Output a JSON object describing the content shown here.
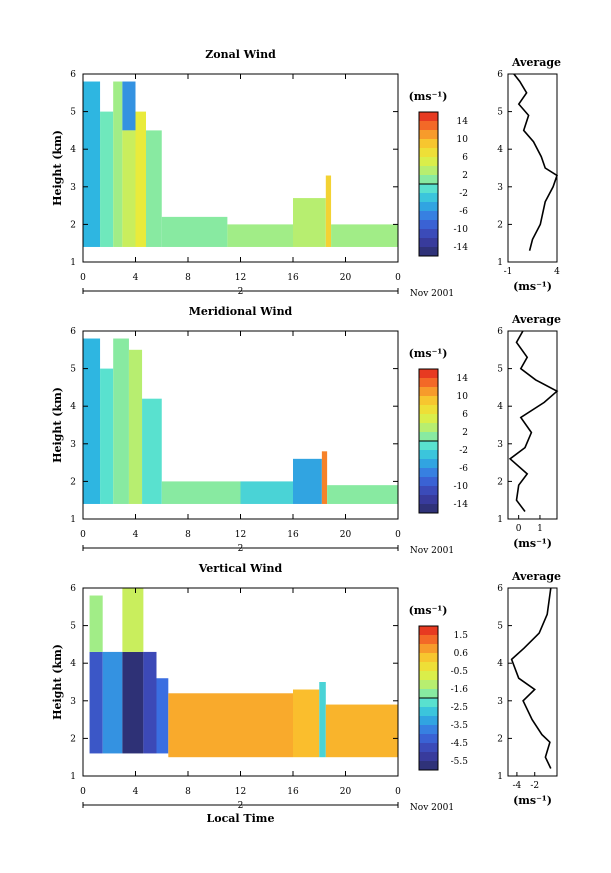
{
  "figure": {
    "xlabel": "Local Time",
    "date_label": "Nov 2001",
    "day_label": "2"
  },
  "chart_data": [
    {
      "type": "heatmap",
      "title": "Zonal Wind",
      "xlabel": "Local Time",
      "ylabel": "Height (km)",
      "x_ticks": [
        "0",
        "4",
        "8",
        "12",
        "16",
        "20",
        "0"
      ],
      "x_range_hours": [
        0,
        24
      ],
      "y_ticks": [
        "1",
        "2",
        "3",
        "4",
        "5",
        "6"
      ],
      "ylim": [
        1,
        6
      ],
      "colorbar": {
        "unit_label": "(ms⁻¹)",
        "ticks": [
          "14",
          "10",
          "6",
          "2",
          "-2",
          "-6",
          "-10",
          "-14"
        ],
        "range": [
          -16,
          16
        ]
      },
      "data_regions": [
        {
          "t": [
            0.0,
            1.3
          ],
          "h": [
            1.4,
            5.8
          ],
          "value": -4
        },
        {
          "t": [
            1.3,
            2.3
          ],
          "h": [
            1.4,
            5.0
          ],
          "value": 0
        },
        {
          "t": [
            2.3,
            3.0
          ],
          "h": [
            1.4,
            5.8
          ],
          "value": 2
        },
        {
          "t": [
            3.0,
            4.0
          ],
          "h": [
            4.5,
            5.8
          ],
          "value": -6
        },
        {
          "t": [
            3.0,
            4.0
          ],
          "h": [
            1.4,
            4.5
          ],
          "value": 4
        },
        {
          "t": [
            4.0,
            4.8
          ],
          "h": [
            1.4,
            5.0
          ],
          "value": 6
        },
        {
          "t": [
            4.8,
            6.0
          ],
          "h": [
            1.4,
            4.5
          ],
          "value": 1
        },
        {
          "t": [
            6.0,
            11.0
          ],
          "h": [
            1.4,
            2.2
          ],
          "value": 1
        },
        {
          "t": [
            11.0,
            16.0
          ],
          "h": [
            1.4,
            2.0
          ],
          "value": 2
        },
        {
          "t": [
            16.0,
            18.5
          ],
          "h": [
            1.4,
            2.7
          ],
          "value": 3
        },
        {
          "t": [
            18.5,
            18.9
          ],
          "h": [
            1.4,
            3.3
          ],
          "value": 8
        },
        {
          "t": [
            18.9,
            24.0
          ],
          "h": [
            1.4,
            2.0
          ],
          "value": 2
        }
      ],
      "average_profile": {
        "title": "Average",
        "xlabel": "(ms⁻¹)",
        "x_ticks": [
          "-1",
          "4"
        ],
        "xlim": [
          -1,
          4
        ],
        "y_ticks": [
          "1",
          "2",
          "3",
          "4",
          "5",
          "6"
        ],
        "ylim": [
          1,
          6
        ],
        "points": [
          [
            1.2,
            1.3
          ],
          [
            1.5,
            1.6
          ],
          [
            2.3,
            2.0
          ],
          [
            2.8,
            2.6
          ],
          [
            3.6,
            3.0
          ],
          [
            4.0,
            3.3
          ],
          [
            2.8,
            3.5
          ],
          [
            2.4,
            3.8
          ],
          [
            1.6,
            4.2
          ],
          [
            0.6,
            4.5
          ],
          [
            1.1,
            4.9
          ],
          [
            0.1,
            5.2
          ],
          [
            0.9,
            5.5
          ],
          [
            0.2,
            5.8
          ],
          [
            -0.4,
            6.0
          ]
        ]
      }
    },
    {
      "type": "heatmap",
      "title": "Meridional Wind",
      "xlabel": "Local Time",
      "ylabel": "Height (km)",
      "x_ticks": [
        "0",
        "4",
        "8",
        "12",
        "16",
        "20",
        "0"
      ],
      "x_range_hours": [
        0,
        24
      ],
      "y_ticks": [
        "1",
        "2",
        "3",
        "4",
        "5",
        "6"
      ],
      "ylim": [
        1,
        6
      ],
      "colorbar": {
        "unit_label": "(ms⁻¹)",
        "ticks": [
          "14",
          "10",
          "6",
          "2",
          "-2",
          "-6",
          "-10",
          "-14"
        ],
        "range": [
          -16,
          16
        ]
      },
      "data_regions": [
        {
          "t": [
            0.0,
            1.3
          ],
          "h": [
            1.4,
            5.8
          ],
          "value": -4
        },
        {
          "t": [
            1.3,
            2.3
          ],
          "h": [
            1.4,
            5.0
          ],
          "value": -1
        },
        {
          "t": [
            2.3,
            3.5
          ],
          "h": [
            1.4,
            5.8
          ],
          "value": 1
        },
        {
          "t": [
            3.5,
            4.5
          ],
          "h": [
            1.4,
            5.5
          ],
          "value": 3
        },
        {
          "t": [
            4.5,
            6.0
          ],
          "h": [
            1.4,
            4.2
          ],
          "value": -1
        },
        {
          "t": [
            6.0,
            12.0
          ],
          "h": [
            1.4,
            2.0
          ],
          "value": 1
        },
        {
          "t": [
            12.0,
            16.0
          ],
          "h": [
            1.4,
            2.0
          ],
          "value": -2
        },
        {
          "t": [
            16.0,
            18.2
          ],
          "h": [
            1.4,
            2.6
          ],
          "value": -5
        },
        {
          "t": [
            18.2,
            18.6
          ],
          "h": [
            1.4,
            2.8
          ],
          "value": 12
        },
        {
          "t": [
            18.6,
            24.0
          ],
          "h": [
            1.4,
            1.9
          ],
          "value": 1
        }
      ],
      "average_profile": {
        "title": "Average",
        "xlabel": "(ms⁻¹)",
        "x_ticks": [
          "0",
          "1"
        ],
        "xlim": [
          -0.5,
          1.8
        ],
        "y_ticks": [
          "1",
          "2",
          "3",
          "4",
          "5",
          "6"
        ],
        "ylim": [
          1,
          6
        ],
        "points": [
          [
            0.3,
            1.2
          ],
          [
            -0.1,
            1.5
          ],
          [
            0.0,
            1.9
          ],
          [
            0.4,
            2.2
          ],
          [
            -0.4,
            2.6
          ],
          [
            0.3,
            2.9
          ],
          [
            0.6,
            3.3
          ],
          [
            0.1,
            3.7
          ],
          [
            1.2,
            4.1
          ],
          [
            1.8,
            4.4
          ],
          [
            0.8,
            4.7
          ],
          [
            0.1,
            5.0
          ],
          [
            0.4,
            5.3
          ],
          [
            -0.1,
            5.7
          ],
          [
            0.2,
            6.0
          ]
        ]
      }
    },
    {
      "type": "heatmap",
      "title": "Vertical Wind",
      "xlabel": "Local Time",
      "ylabel": "Height (km)",
      "x_ticks": [
        "0",
        "4",
        "8",
        "12",
        "16",
        "20",
        "0"
      ],
      "x_range_hours": [
        0,
        24
      ],
      "y_ticks": [
        "1",
        "2",
        "3",
        "4",
        "5",
        "6"
      ],
      "ylim": [
        1,
        6
      ],
      "colorbar": {
        "unit_label": "(ms⁻¹)",
        "ticks": [
          "1.5",
          "0.6",
          "-0.5",
          "-1.6",
          "-2.5",
          "-3.5",
          "-4.5",
          "-5.5"
        ],
        "range": [
          -6.0,
          2.0
        ]
      },
      "data_regions": [
        {
          "t": [
            0.5,
            1.5
          ],
          "h": [
            1.6,
            4.3
          ],
          "value": -4.5
        },
        {
          "t": [
            0.5,
            1.5
          ],
          "h": [
            4.3,
            5.8
          ],
          "value": -1.5
        },
        {
          "t": [
            1.5,
            3.0
          ],
          "h": [
            1.6,
            4.3
          ],
          "value": -3.5
        },
        {
          "t": [
            3.0,
            4.6
          ],
          "h": [
            1.6,
            4.3
          ],
          "value": -5.8
        },
        {
          "t": [
            3.0,
            4.6
          ],
          "h": [
            4.3,
            6.0
          ],
          "value": -1.0
        },
        {
          "t": [
            4.6,
            5.6
          ],
          "h": [
            1.6,
            4.3
          ],
          "value": -4.8
        },
        {
          "t": [
            5.6,
            6.5
          ],
          "h": [
            1.6,
            3.6
          ],
          "value": -4.0
        },
        {
          "t": [
            6.5,
            16.0
          ],
          "h": [
            1.5,
            3.2
          ],
          "value": 0.6
        },
        {
          "t": [
            16.0,
            18.0
          ],
          "h": [
            1.5,
            3.3
          ],
          "value": 0.4
        },
        {
          "t": [
            18.0,
            18.5
          ],
          "h": [
            1.5,
            3.5
          ],
          "value": -2.5
        },
        {
          "t": [
            18.5,
            24.0
          ],
          "h": [
            1.5,
            2.9
          ],
          "value": 0.5
        }
      ],
      "average_profile": {
        "title": "Average",
        "xlabel": "(ms⁻¹)",
        "x_ticks": [
          "-4",
          "-2"
        ],
        "xlim": [
          -5,
          0.5
        ],
        "y_ticks": [
          "1",
          "2",
          "3",
          "4",
          "5",
          "6"
        ],
        "ylim": [
          1,
          6
        ],
        "points": [
          [
            -0.2,
            1.2
          ],
          [
            -0.8,
            1.5
          ],
          [
            -0.3,
            1.9
          ],
          [
            -1.2,
            2.1
          ],
          [
            -2.3,
            2.5
          ],
          [
            -3.3,
            3.0
          ],
          [
            -2.0,
            3.3
          ],
          [
            -3.8,
            3.6
          ],
          [
            -4.6,
            4.1
          ],
          [
            -3.2,
            4.4
          ],
          [
            -1.5,
            4.8
          ],
          [
            -0.6,
            5.3
          ],
          [
            -0.2,
            6.0
          ]
        ]
      }
    }
  ]
}
